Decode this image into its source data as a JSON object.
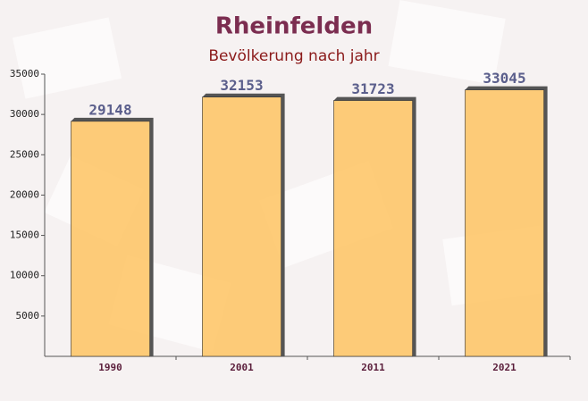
{
  "chart_data": {
    "type": "bar",
    "title": "Rheinfelden",
    "subtitle": "Bevölkerung nach jahr",
    "categories": [
      "1990",
      "2001",
      "2011",
      "2021"
    ],
    "values": [
      29148,
      32153,
      31723,
      33045
    ],
    "color": "#fec76a",
    "ylim": [
      0,
      35000
    ],
    "yticks": [
      5000,
      10000,
      15000,
      20000,
      25000,
      30000,
      35000
    ],
    "grid": false
  }
}
